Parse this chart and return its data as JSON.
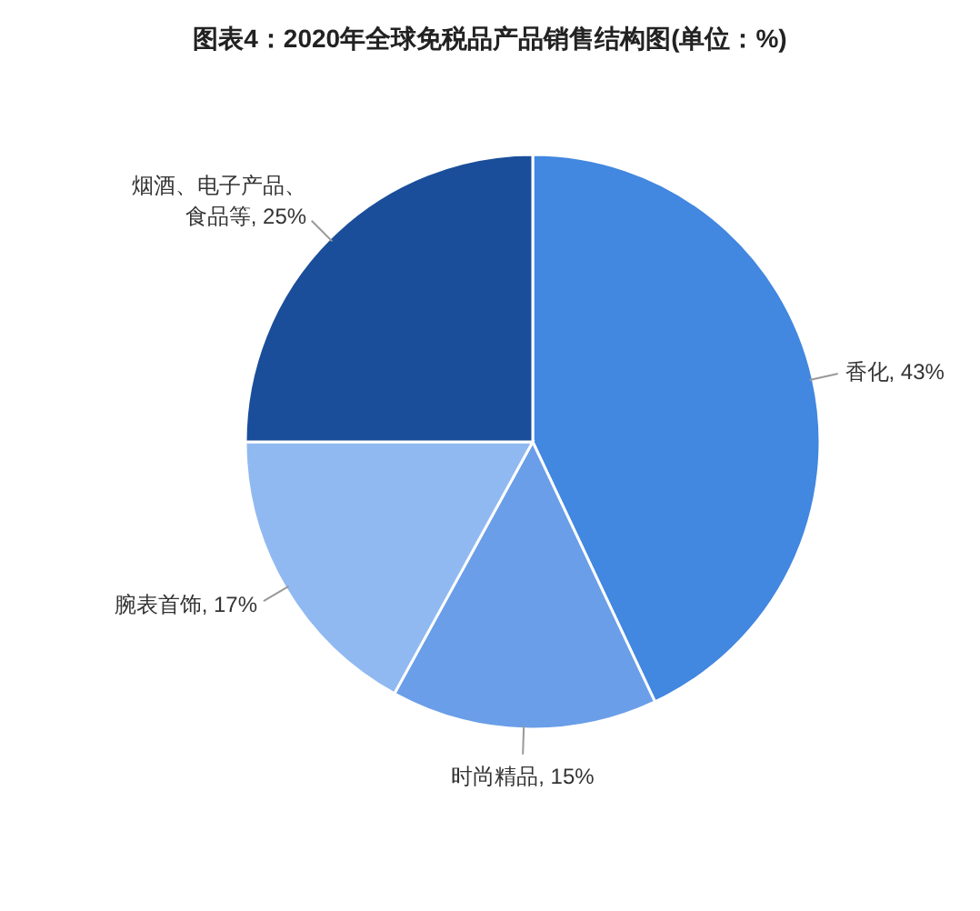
{
  "chart_data": {
    "type": "pie",
    "title": "图表4：2020年全球免税品产品销售结构图(单位：%)",
    "categories": [
      "香化",
      "时尚精品",
      "腕表首饰",
      "烟酒、电子产品、食品等"
    ],
    "values": [
      43,
      15,
      17,
      25
    ],
    "value_labels": [
      "43%",
      "15%",
      "17%",
      "25%"
    ],
    "colors": [
      "#4287e0",
      "#6a9ee8",
      "#91b9f1",
      "#1a4e9a"
    ]
  }
}
